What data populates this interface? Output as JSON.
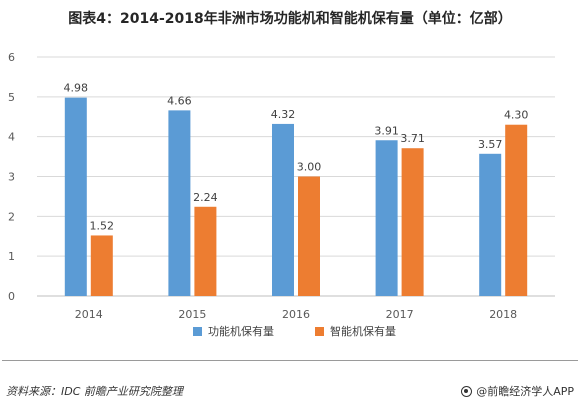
{
  "header": {
    "title": "图表4：2014-2018年非洲市场功能机和智能机保有量（单位：亿部）"
  },
  "footer": {
    "source": "资料来源：IDC 前瞻产业研究院整理",
    "brand": "@前瞻经济学人APP",
    "brand_icon": "circle-logo-icon"
  },
  "chart_data": {
    "type": "bar",
    "title": "图表4：2014-2018年非洲市场功能机和智能机保有量（单位：亿部）",
    "categories": [
      "2014",
      "2015",
      "2016",
      "2017",
      "2018"
    ],
    "series": [
      {
        "name": "功能机保有量",
        "color": "#5B9BD5",
        "values": [
          4.98,
          4.66,
          4.32,
          3.91,
          3.57
        ],
        "labels": [
          "4.98",
          "4.66",
          "4.32",
          "3.91",
          "3.57"
        ]
      },
      {
        "name": "智能机保有量",
        "color": "#ED7D31",
        "values": [
          1.52,
          2.24,
          3.0,
          3.71,
          4.3
        ],
        "labels": [
          "1.52",
          "2.24",
          "3.00",
          "3.71",
          "4.30"
        ]
      }
    ],
    "ylim": [
      0,
      6
    ],
    "yticks": [
      "0",
      "1",
      "2",
      "3",
      "4",
      "5",
      "6"
    ],
    "grid": true,
    "legend_position": "bottom-center",
    "xlabel": "",
    "ylabel": ""
  }
}
